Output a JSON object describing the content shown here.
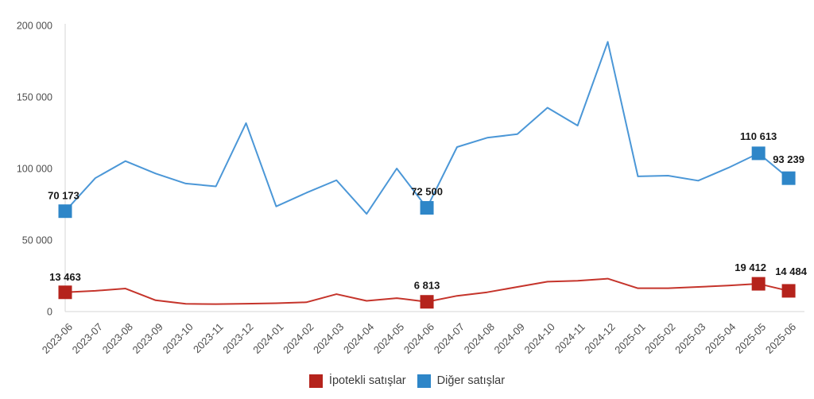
{
  "page": {
    "background": "#FFFFFF"
  },
  "chart_data": {
    "type": "line",
    "title": "",
    "categories": [
      "2023-06",
      "2023-07",
      "2023-08",
      "2023-09",
      "2023-10",
      "2023-11",
      "2023-12",
      "2024-01",
      "2024-02",
      "2024-03",
      "2024-04",
      "2024-05",
      "2024-06",
      "2024-07",
      "2024-08",
      "2024-09",
      "2024-10",
      "2024-11",
      "2024-12",
      "2025-01",
      "2025-02",
      "2025-03",
      "2025-04",
      "2025-05",
      "2025-06"
    ],
    "x_tick_rotation": -45,
    "ylim": [
      0,
      200000
    ],
    "yticks": [
      {
        "value": 200000,
        "label": "200 000"
      },
      {
        "value": 150000,
        "label": "150 000"
      },
      {
        "value": 100000,
        "label": "100 000"
      },
      {
        "value": 50000,
        "label": "50 000"
      },
      {
        "value": 0,
        "label": "0"
      }
    ],
    "grid": false,
    "legend_position": "bottom",
    "axis_color": "#D6D6D6",
    "tick_label_color": "#4E4E4E",
    "data_label_color": "#161616",
    "series": [
      {
        "id": "ipotekli",
        "name": "İpotekli satışlar",
        "color": "#B5231C",
        "line_color": "#C5342B",
        "marker": "square",
        "values": [
          13463,
          14500,
          16100,
          7900,
          5400,
          5200,
          5500,
          5800,
          6500,
          12200,
          7500,
          9400,
          6813,
          11000,
          13500,
          17200,
          20900,
          21500,
          23000,
          16300,
          16300,
          17200,
          18200,
          19412,
          14484
        ],
        "labels": [
          {
            "index": 0,
            "text": "13 463",
            "dx": 0,
            "dy": -15
          },
          {
            "index": 12,
            "text": "6 813",
            "dx": 0,
            "dy": -16
          },
          {
            "index": 23,
            "text": "19 412",
            "dx": -10,
            "dy": -16
          },
          {
            "index": 24,
            "text": "14 484",
            "dx": 3,
            "dy": -20
          }
        ]
      },
      {
        "id": "diger",
        "name": "Diğer satışlar",
        "color": "#2E86C8",
        "line_color": "#4B97D7",
        "marker": "square",
        "values": [
          70173,
          93300,
          105200,
          96500,
          89500,
          87500,
          131700,
          73500,
          83000,
          91800,
          68300,
          100000,
          72500,
          115000,
          121500,
          124000,
          142500,
          130000,
          188500,
          94500,
          95000,
          91500,
          100500,
          110613,
          93239
        ],
        "labels": [
          {
            "index": 0,
            "text": "70 173",
            "dx": -2,
            "dy": -15
          },
          {
            "index": 12,
            "text": "72 500",
            "dx": 0,
            "dy": -16
          },
          {
            "index": 23,
            "text": "110 613",
            "dx": 0,
            "dy": -17
          },
          {
            "index": 24,
            "text": "93 239",
            "dx": 0,
            "dy": -19
          }
        ]
      }
    ]
  }
}
